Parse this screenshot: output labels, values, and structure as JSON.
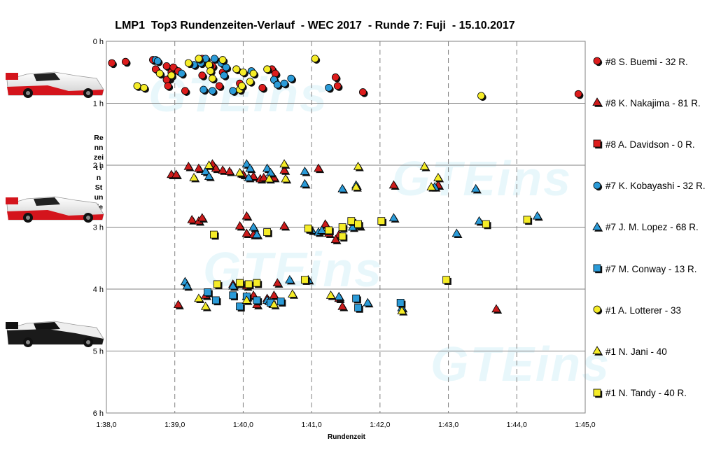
{
  "chart_data": {
    "type": "scatter",
    "title": "LMP1  Top3 Rundenzeiten-Verlauf  - WEC 2017  - Runde 7: Fuji  - 15.10.2017",
    "xlabel": "Rundenzeit",
    "ylabel": "Rennzeit in Stunden",
    "xlim": [
      98.0,
      105.0
    ],
    "ylim": [
      0,
      6
    ],
    "x_ticks": [
      "1:38,0",
      "1:39,0",
      "1:40,0",
      "1:41,0",
      "1:42,0",
      "1:43,0",
      "1:44,0",
      "1:45,0"
    ],
    "y_ticks": [
      "0 h",
      "1 h",
      "2 h",
      "3 h",
      "4 h",
      "5 h",
      "6 h"
    ],
    "grid": "dashed vertical, solid horizontal",
    "legend_position": "right",
    "watermark": "GTEins",
    "series": [
      {
        "name": "#8 S. Buemi - 32 R.",
        "marker": "circle",
        "color": "#dd1c1c",
        "points": [
          [
            98.08,
            0.35
          ],
          [
            98.28,
            0.33
          ],
          [
            98.68,
            0.3
          ],
          [
            98.72,
            0.45
          ],
          [
            98.88,
            0.4
          ],
          [
            98.92,
            0.6
          ],
          [
            98.95,
            0.5
          ],
          [
            98.98,
            0.42
          ],
          [
            98.88,
            0.62
          ],
          [
            98.9,
            0.72
          ],
          [
            99.05,
            0.48
          ],
          [
            99.15,
            0.8
          ],
          [
            99.4,
            0.55
          ],
          [
            99.4,
            0.28
          ],
          [
            99.55,
            0.4
          ],
          [
            99.65,
            0.72
          ],
          [
            99.7,
            0.5
          ],
          [
            99.95,
            0.68
          ],
          [
            100.28,
            0.75
          ],
          [
            100.42,
            0.45
          ],
          [
            100.47,
            0.52
          ],
          [
            101.35,
            0.58
          ],
          [
            101.38,
            0.72
          ],
          [
            101.75,
            0.82
          ],
          [
            104.9,
            0.85
          ]
        ]
      },
      {
        "name": "#8 K. Nakajima - 81 R.",
        "marker": "triangle",
        "color": "#cc1b1b",
        "points": [
          [
            98.95,
            2.15
          ],
          [
            99.02,
            2.15
          ],
          [
            99.2,
            2.02
          ],
          [
            99.35,
            2.05
          ],
          [
            99.45,
            2.1
          ],
          [
            99.55,
            1.98
          ],
          [
            99.6,
            2.05
          ],
          [
            99.7,
            2.08
          ],
          [
            99.8,
            2.1
          ],
          [
            100.0,
            2.15
          ],
          [
            100.15,
            2.18
          ],
          [
            100.25,
            2.22
          ],
          [
            100.3,
            2.2
          ],
          [
            100.45,
            2.2
          ],
          [
            100.6,
            2.08
          ],
          [
            101.1,
            2.05
          ],
          [
            102.2,
            2.32
          ],
          [
            102.85,
            2.32
          ],
          [
            99.25,
            2.88
          ],
          [
            99.35,
            2.9
          ],
          [
            99.4,
            2.85
          ],
          [
            99.95,
            2.98
          ],
          [
            100.05,
            2.82
          ],
          [
            100.05,
            3.1
          ],
          [
            100.15,
            3.12
          ],
          [
            100.6,
            2.98
          ],
          [
            101.2,
            2.95
          ],
          [
            101.25,
            3.1
          ],
          [
            101.4,
            3.12
          ],
          [
            101.35,
            3.2
          ],
          [
            99.05,
            4.25
          ],
          [
            99.45,
            4.1
          ],
          [
            99.85,
            3.92
          ],
          [
            100.05,
            3.95
          ],
          [
            100.05,
            4.12
          ],
          [
            100.15,
            4.1
          ],
          [
            100.2,
            4.25
          ],
          [
            100.35,
            4.15
          ],
          [
            100.45,
            4.1
          ],
          [
            100.5,
            3.9
          ],
          [
            101.4,
            4.15
          ],
          [
            101.45,
            4.28
          ],
          [
            103.7,
            4.32
          ]
        ]
      },
      {
        "name": "#8 A. Davidson - 0 R.",
        "marker": "square",
        "color": "#dd1c1c",
        "points": []
      },
      {
        "name": "#7 K. Kobayashi - 32 R.",
        "marker": "circle",
        "color": "#2b9bd8",
        "points": [
          [
            98.72,
            0.3
          ],
          [
            98.75,
            0.32
          ],
          [
            99.1,
            0.52
          ],
          [
            99.28,
            0.38
          ],
          [
            99.38,
            0.35
          ],
          [
            99.42,
            0.78
          ],
          [
            99.45,
            0.28
          ],
          [
            99.55,
            0.8
          ],
          [
            99.58,
            0.28
          ],
          [
            99.68,
            0.35
          ],
          [
            99.72,
            0.55
          ],
          [
            99.75,
            0.42
          ],
          [
            99.85,
            0.8
          ],
          [
            99.95,
            0.78
          ],
          [
            100.12,
            0.48
          ],
          [
            100.45,
            0.62
          ],
          [
            100.5,
            0.7
          ],
          [
            100.6,
            0.68
          ],
          [
            100.7,
            0.6
          ],
          [
            101.25,
            0.75
          ]
        ]
      },
      {
        "name": "#7 J. M. Lopez - 68 R.",
        "marker": "triangle",
        "color": "#2b9bd8",
        "points": [
          [
            99.45,
            2.1
          ],
          [
            99.5,
            2.18
          ],
          [
            100.05,
            1.98
          ],
          [
            100.08,
            2.2
          ],
          [
            100.1,
            2.05
          ],
          [
            100.35,
            2.05
          ],
          [
            100.4,
            2.12
          ],
          [
            100.9,
            2.1
          ],
          [
            100.9,
            2.3
          ],
          [
            101.45,
            2.38
          ],
          [
            101.65,
            2.32
          ],
          [
            102.8,
            2.35
          ],
          [
            103.4,
            2.38
          ],
          [
            100.15,
            3.0
          ],
          [
            100.2,
            3.12
          ],
          [
            101.0,
            3.05
          ],
          [
            101.1,
            3.08
          ],
          [
            101.15,
            3.05
          ],
          [
            101.6,
            3.0
          ],
          [
            101.7,
            2.98
          ],
          [
            102.2,
            2.85
          ],
          [
            103.12,
            3.1
          ],
          [
            103.45,
            2.9
          ],
          [
            104.3,
            2.82
          ],
          [
            99.15,
            3.88
          ],
          [
            99.18,
            3.95
          ],
          [
            99.85,
            3.95
          ],
          [
            100.35,
            4.18
          ],
          [
            100.38,
            4.2
          ],
          [
            100.68,
            3.85
          ],
          [
            100.95,
            3.85
          ],
          [
            101.4,
            4.12
          ],
          [
            101.82,
            4.22
          ],
          [
            102.32,
            4.3
          ]
        ]
      },
      {
        "name": "#7 M. Conway - 13 R.",
        "marker": "square",
        "color": "#2b9bd8",
        "points": [
          [
            99.48,
            4.05
          ],
          [
            99.6,
            4.18
          ],
          [
            99.85,
            4.1
          ],
          [
            99.95,
            4.28
          ],
          [
            100.05,
            4.12
          ],
          [
            100.2,
            4.18
          ],
          [
            100.4,
            4.22
          ],
          [
            100.55,
            4.2
          ],
          [
            101.65,
            4.15
          ],
          [
            101.68,
            4.3
          ],
          [
            102.3,
            4.22
          ]
        ]
      },
      {
        "name": "#1 A. Lotterer - 33",
        "marker": "circle",
        "color": "#f5ec28",
        "points": [
          [
            98.45,
            0.72
          ],
          [
            98.55,
            0.75
          ],
          [
            98.78,
            0.52
          ],
          [
            98.95,
            0.55
          ],
          [
            99.2,
            0.35
          ],
          [
            99.35,
            0.28
          ],
          [
            99.5,
            0.38
          ],
          [
            99.52,
            0.48
          ],
          [
            99.55,
            0.6
          ],
          [
            99.7,
            0.3
          ],
          [
            99.9,
            0.45
          ],
          [
            99.95,
            0.78
          ],
          [
            99.98,
            0.72
          ],
          [
            100.0,
            0.5
          ],
          [
            100.1,
            0.65
          ],
          [
            100.15,
            0.52
          ],
          [
            100.35,
            0.45
          ],
          [
            101.05,
            0.28
          ],
          [
            103.48,
            0.88
          ]
        ]
      },
      {
        "name": "#1 N. Jani - 40",
        "marker": "triangle",
        "color": "#f5ec28",
        "points": [
          [
            99.28,
            2.2
          ],
          [
            99.5,
            2.0
          ],
          [
            99.95,
            2.12
          ],
          [
            100.38,
            2.22
          ],
          [
            100.62,
            2.22
          ],
          [
            100.6,
            1.98
          ],
          [
            101.68,
            2.02
          ],
          [
            101.65,
            2.35
          ],
          [
            102.65,
            2.02
          ],
          [
            102.85,
            2.2
          ],
          [
            102.75,
            2.35
          ],
          [
            99.35,
            4.15
          ],
          [
            99.45,
            4.28
          ],
          [
            100.05,
            4.18
          ],
          [
            100.45,
            4.25
          ],
          [
            100.72,
            4.08
          ],
          [
            101.28,
            4.1
          ],
          [
            102.32,
            4.35
          ]
        ]
      },
      {
        "name": "#1 N. Tandy - 40 R.",
        "marker": "square",
        "color": "#f5ec28",
        "points": [
          [
            99.57,
            3.12
          ],
          [
            100.35,
            3.08
          ],
          [
            100.95,
            3.02
          ],
          [
            101.25,
            3.05
          ],
          [
            101.45,
            3.15
          ],
          [
            101.45,
            3.0
          ],
          [
            101.58,
            2.9
          ],
          [
            101.68,
            2.95
          ],
          [
            102.02,
            2.9
          ],
          [
            103.55,
            2.95
          ],
          [
            104.15,
            2.88
          ],
          [
            102.97,
            3.85
          ],
          [
            99.62,
            3.92
          ],
          [
            99.95,
            3.9
          ],
          [
            100.08,
            3.92
          ],
          [
            100.2,
            3.9
          ],
          [
            100.9,
            3.85
          ]
        ]
      }
    ]
  }
}
